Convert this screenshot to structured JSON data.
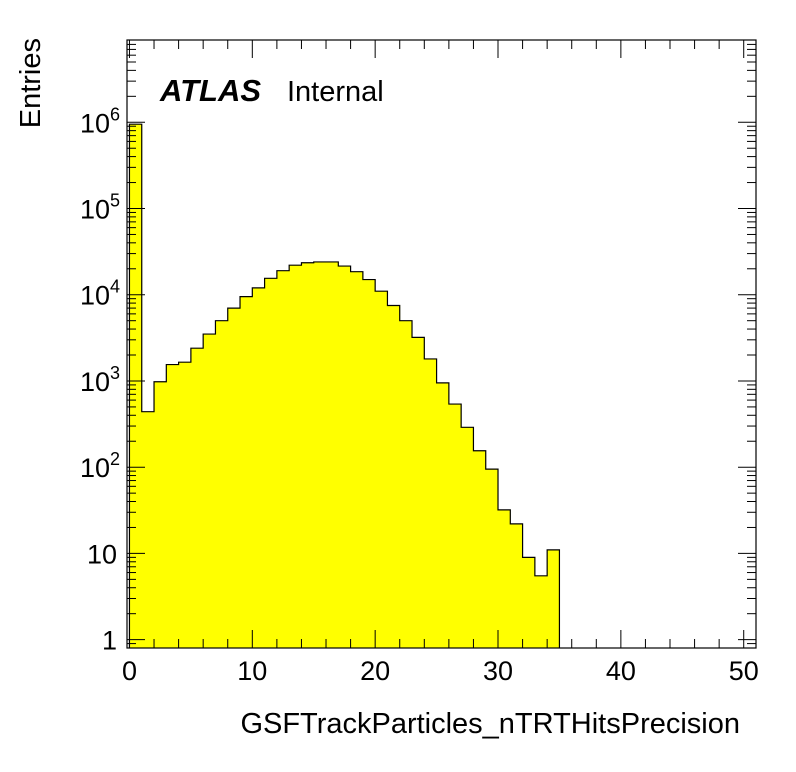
{
  "chart_data": {
    "type": "bar",
    "experiment": "ATLAS",
    "experiment_status": "Internal",
    "xlabel": "GSFTrackParticles_nTRTHitsPrecision",
    "ylabel": "Entries",
    "xlim": [
      -0.2,
      51
    ],
    "ylim": [
      0.8,
      9000000
    ],
    "yscale": "log",
    "grid": false,
    "fill_color": "#ffff00",
    "line_color": "#000000",
    "x_ticks": [
      "0",
      "10",
      "20",
      "30",
      "40",
      "50"
    ],
    "y_ticks": [
      {
        "value": 1,
        "base": "1",
        "exp": ""
      },
      {
        "value": 10,
        "base": "10",
        "exp": ""
      },
      {
        "value": 100,
        "base": "10",
        "exp": "2"
      },
      {
        "value": 1000,
        "base": "10",
        "exp": "3"
      },
      {
        "value": 10000,
        "base": "10",
        "exp": "4"
      },
      {
        "value": 100000,
        "base": "10",
        "exp": "5"
      },
      {
        "value": 1000000,
        "base": "10",
        "exp": "6"
      }
    ],
    "bin_width": 1,
    "bins": [
      {
        "x": 0,
        "y": 950000
      },
      {
        "x": 1,
        "y": 440
      },
      {
        "x": 2,
        "y": 980
      },
      {
        "x": 3,
        "y": 1550
      },
      {
        "x": 4,
        "y": 1650
      },
      {
        "x": 5,
        "y": 2400
      },
      {
        "x": 6,
        "y": 3500
      },
      {
        "x": 7,
        "y": 5000
      },
      {
        "x": 8,
        "y": 7000
      },
      {
        "x": 9,
        "y": 9500
      },
      {
        "x": 10,
        "y": 12000
      },
      {
        "x": 11,
        "y": 15500
      },
      {
        "x": 12,
        "y": 19000
      },
      {
        "x": 13,
        "y": 22000
      },
      {
        "x": 14,
        "y": 23500
      },
      {
        "x": 15,
        "y": 24000
      },
      {
        "x": 16,
        "y": 24000
      },
      {
        "x": 17,
        "y": 21500
      },
      {
        "x": 18,
        "y": 18500
      },
      {
        "x": 19,
        "y": 15000
      },
      {
        "x": 20,
        "y": 11000
      },
      {
        "x": 21,
        "y": 7500
      },
      {
        "x": 22,
        "y": 5000
      },
      {
        "x": 23,
        "y": 3200
      },
      {
        "x": 24,
        "y": 1800
      },
      {
        "x": 25,
        "y": 950
      },
      {
        "x": 26,
        "y": 540
      },
      {
        "x": 27,
        "y": 290
      },
      {
        "x": 28,
        "y": 155
      },
      {
        "x": 29,
        "y": 95
      },
      {
        "x": 30,
        "y": 32
      },
      {
        "x": 31,
        "y": 22
      },
      {
        "x": 32,
        "y": 9
      },
      {
        "x": 33,
        "y": 5.5
      },
      {
        "x": 34,
        "y": 11
      }
    ]
  }
}
